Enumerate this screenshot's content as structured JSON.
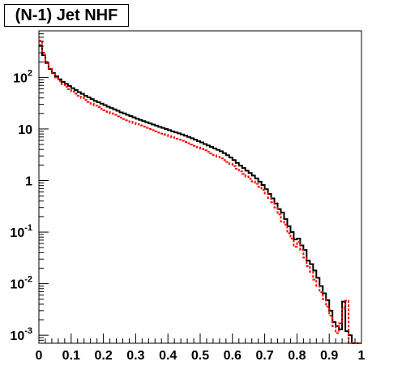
{
  "chart_data": {
    "type": "line",
    "title": "(N-1) Jet NHF",
    "xlabel": "",
    "ylabel": "",
    "xlim": [
      0,
      1
    ],
    "ylim": [
      0.0007,
      800
    ],
    "yscale": "log",
    "grid": false,
    "x_ticks": [
      "0",
      "0.1",
      "0.2",
      "0.3",
      "0.4",
      "0.5",
      "0.6",
      "0.7",
      "0.8",
      "0.9",
      "1"
    ],
    "y_ticks": [
      {
        "value": 0.001,
        "base": "10",
        "exp": "-3"
      },
      {
        "value": 0.01,
        "base": "10",
        "exp": "-2"
      },
      {
        "value": 0.1,
        "base": "10",
        "exp": "-1"
      },
      {
        "value": 1,
        "base": "1",
        "exp": ""
      },
      {
        "value": 10,
        "base": "10",
        "exp": ""
      },
      {
        "value": 100,
        "base": "10",
        "exp": "2"
      }
    ],
    "bin_width": 0.01,
    "series": [
      {
        "color": "#000000",
        "style": "solid",
        "values": [
          420,
          270,
          190,
          145,
          122,
          105,
          92,
          82,
          75,
          68,
          62,
          57,
          52,
          48,
          44,
          41,
          38,
          35,
          33,
          31,
          29,
          27,
          25.5,
          24,
          22.5,
          21,
          20,
          18.8,
          17.8,
          16.8,
          15.8,
          15,
          14.2,
          13.5,
          12.8,
          12.2,
          11.6,
          11,
          10.5,
          10,
          9.5,
          9,
          8.6,
          8.2,
          7.8,
          7.4,
          7,
          6.6,
          6.2,
          5.8,
          5.5,
          5.1,
          4.8,
          4.5,
          4.2,
          3.95,
          3.7,
          3.4,
          3.1,
          2.8,
          2.5,
          2.2,
          1.95,
          1.75,
          1.55,
          1.4,
          1.25,
          1.1,
          0.95,
          0.82,
          0.68,
          0.55,
          0.45,
          0.36,
          0.28,
          0.24,
          0.18,
          0.13,
          0.1,
          0.072,
          0.075,
          0.055,
          0.045,
          0.028,
          0.024,
          0.018,
          0.013,
          0.009,
          0.0065,
          0.0048,
          0.003,
          0.0018,
          0.0015,
          0.0013,
          0.0045,
          0.0012,
          0.001,
          0.0007,
          0.0007,
          0.0007
        ]
      },
      {
        "color": "#ff0000",
        "style": "dashed",
        "values": [
          520,
          300,
          200,
          148,
          120,
          100,
          85,
          74,
          66,
          59,
          53,
          48,
          44,
          40,
          36.5,
          33.5,
          31,
          28.5,
          26.5,
          24.5,
          23,
          21.5,
          20,
          18.8,
          17.6,
          16.6,
          15.6,
          14.7,
          13.9,
          13.1,
          12.4,
          11.7,
          11.1,
          10.5,
          10,
          9.5,
          9,
          8.5,
          8.1,
          7.7,
          7.3,
          6.9,
          6.5,
          6.2,
          5.9,
          5.6,
          5.3,
          5,
          4.7,
          4.4,
          4.1,
          3.85,
          3.6,
          3.35,
          3.1,
          2.9,
          2.7,
          2.5,
          2.3,
          2.1,
          1.9,
          1.7,
          1.5,
          1.35,
          1.2,
          1.08,
          0.96,
          0.86,
          0.76,
          0.66,
          0.56,
          0.46,
          0.38,
          0.3,
          0.22,
          0.16,
          0.14,
          0.095,
          0.075,
          0.052,
          0.065,
          0.045,
          0.032,
          0.022,
          0.017,
          0.012,
          0.009,
          0.0068,
          0.005,
          0.0036,
          0.0024,
          0.0015,
          0.0011,
          0.0017,
          0.0034,
          0.0047,
          0.0007,
          0.0007,
          0.0007,
          0.0007
        ]
      }
    ]
  }
}
